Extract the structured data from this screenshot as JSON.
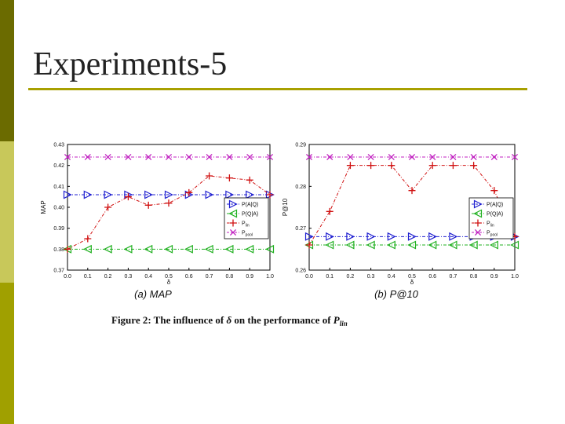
{
  "slide": {
    "title": "Experiments-5"
  },
  "figure_caption": {
    "prefix": "Figure 2:  The influence of ",
    "delta": "δ",
    "middle": " on the performance of ",
    "p": "P",
    "sub": "lin"
  },
  "colors": {
    "accent_dark": "#6b6b00",
    "accent_light": "#c8c85a",
    "accent_mid": "#a0a000",
    "rule": "#a8a000"
  },
  "chart_data": [
    {
      "type": "line",
      "subtitle": "(a) MAP",
      "xlabel": "δ",
      "ylabel": "MAP",
      "x": [
        0.0,
        0.1,
        0.2,
        0.3,
        0.4,
        0.5,
        0.6,
        0.7,
        0.8,
        0.9,
        1.0
      ],
      "xticks": [
        "0.0",
        "0.1",
        "0.2",
        "0.3",
        "0.4",
        "0.5",
        "0.6",
        "0.7",
        "0.8",
        "0.9",
        "1.0"
      ],
      "ylim": [
        0.37,
        0.43
      ],
      "yticks": [
        "0.37",
        "0.38",
        "0.39",
        "0.40",
        "0.41",
        "0.42",
        "0.43"
      ],
      "grid": false,
      "legend_position": "right-middle",
      "series": [
        {
          "name": "P(A|Q)",
          "legend_main": "P(A|Q)",
          "legend_sub": "",
          "color": "#1f1fd0",
          "marker": "triangle-right",
          "values": [
            0.406,
            0.406,
            0.406,
            0.406,
            0.406,
            0.406,
            0.406,
            0.406,
            0.406,
            0.406,
            0.406
          ]
        },
        {
          "name": "P(Q|A)",
          "legend_main": "P(Q|A)",
          "legend_sub": "",
          "color": "#20b020",
          "marker": "triangle-left",
          "values": [
            0.38,
            0.38,
            0.38,
            0.38,
            0.38,
            0.38,
            0.38,
            0.38,
            0.38,
            0.38,
            0.38
          ]
        },
        {
          "name": "Plin",
          "legend_main": "P",
          "legend_sub": "lin",
          "color": "#d01010",
          "marker": "plus",
          "values": [
            0.38,
            0.385,
            0.4,
            0.405,
            0.401,
            0.402,
            0.407,
            0.415,
            0.414,
            0.413,
            0.406
          ]
        },
        {
          "name": "Ppool",
          "legend_main": "P",
          "legend_sub": "pool",
          "color": "#c020c0",
          "marker": "x",
          "values": [
            0.424,
            0.424,
            0.424,
            0.424,
            0.424,
            0.424,
            0.424,
            0.424,
            0.424,
            0.424,
            0.424
          ]
        }
      ]
    },
    {
      "type": "line",
      "subtitle": "(b) P@10",
      "xlabel": "δ",
      "ylabel": "P@10",
      "x": [
        0.0,
        0.1,
        0.2,
        0.3,
        0.4,
        0.5,
        0.6,
        0.7,
        0.8,
        0.9,
        1.0
      ],
      "xticks": [
        "0.0",
        "0.1",
        "0.2",
        "0.3",
        "0.4",
        "0.5",
        "0.6",
        "0.7",
        "0.8",
        "0.9",
        "1.0"
      ],
      "ylim": [
        0.26,
        0.29
      ],
      "yticks": [
        "0.26",
        "0.27",
        "0.28",
        "0.29"
      ],
      "grid": false,
      "legend_position": "right-middle",
      "series": [
        {
          "name": "P(A|Q)",
          "legend_main": "P(A|Q)",
          "legend_sub": "",
          "color": "#1f1fd0",
          "marker": "triangle-right",
          "values": [
            0.268,
            0.268,
            0.268,
            0.268,
            0.268,
            0.268,
            0.268,
            0.268,
            0.268,
            0.268,
            0.268
          ]
        },
        {
          "name": "P(Q|A)",
          "legend_main": "P(Q|A)",
          "legend_sub": "",
          "color": "#20b020",
          "marker": "triangle-left",
          "values": [
            0.266,
            0.266,
            0.266,
            0.266,
            0.266,
            0.266,
            0.266,
            0.266,
            0.266,
            0.266,
            0.266
          ]
        },
        {
          "name": "Plin",
          "legend_main": "P",
          "legend_sub": "lin",
          "color": "#d01010",
          "marker": "plus",
          "values": [
            0.266,
            0.274,
            0.285,
            0.285,
            0.285,
            0.279,
            0.285,
            0.285,
            0.285,
            0.279,
            0.268
          ]
        },
        {
          "name": "Ppool",
          "legend_main": "P",
          "legend_sub": "pool",
          "color": "#c020c0",
          "marker": "x",
          "values": [
            0.287,
            0.287,
            0.287,
            0.287,
            0.287,
            0.287,
            0.287,
            0.287,
            0.287,
            0.287,
            0.287
          ]
        }
      ]
    }
  ]
}
